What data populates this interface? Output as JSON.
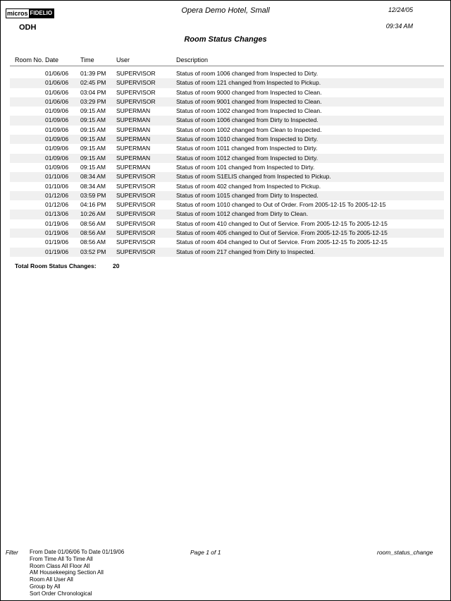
{
  "header": {
    "logo_text": "micros-FIDELIO",
    "logo_left": "micros",
    "logo_right": "FIDELIO",
    "hotel_name": "Opera Demo Hotel, Small",
    "print_date": "12/24/05",
    "print_time": "09:34 AM",
    "property_code": "ODH",
    "report_title": "Room Status Changes"
  },
  "columns": {
    "room_no": "Room No.",
    "date": "Date",
    "time": "Time",
    "user": "User",
    "description": "Description"
  },
  "rows": [
    {
      "room_no": "",
      "date": "01/06/06",
      "time": "01:39 PM",
      "user": "SUPERVISOR",
      "description": "Status of room 1006 changed from Inspected  to Dirty."
    },
    {
      "room_no": "",
      "date": "01/06/06",
      "time": "02:45 PM",
      "user": "SUPERVISOR",
      "description": "Status of room 121 changed from Inspected  to Pickup."
    },
    {
      "room_no": "",
      "date": "01/06/06",
      "time": "03:04 PM",
      "user": "SUPERVISOR",
      "description": "Status of room 9000 changed from Inspected  to Clean."
    },
    {
      "room_no": "",
      "date": "01/06/06",
      "time": "03:29 PM",
      "user": "SUPERVISOR",
      "description": "Status of room 9001 changed from Inspected  to Clean."
    },
    {
      "room_no": "",
      "date": "01/09/06",
      "time": "09:15 AM",
      "user": "SUPERMAN",
      "description": "Status of room 1002 changed from Inspected  to Clean."
    },
    {
      "room_no": "",
      "date": "01/09/06",
      "time": "09:15 AM",
      "user": "SUPERMAN",
      "description": "Status of room 1006 changed from Dirty  to Inspected."
    },
    {
      "room_no": "",
      "date": "01/09/06",
      "time": "09:15 AM",
      "user": "SUPERMAN",
      "description": "Status of room 1002 changed from Clean  to Inspected."
    },
    {
      "room_no": "",
      "date": "01/09/06",
      "time": "09:15 AM",
      "user": "SUPERMAN",
      "description": "Status of room 1010 changed from Inspected  to Dirty."
    },
    {
      "room_no": "",
      "date": "01/09/06",
      "time": "09:15 AM",
      "user": "SUPERMAN",
      "description": "Status of room 1011 changed from Inspected  to Dirty."
    },
    {
      "room_no": "",
      "date": "01/09/06",
      "time": "09:15 AM",
      "user": "SUPERMAN",
      "description": "Status of room 1012 changed from Inspected  to Dirty."
    },
    {
      "room_no": "",
      "date": "01/09/06",
      "time": "09:15 AM",
      "user": "SUPERMAN",
      "description": "Status of room 101 changed from Inspected  to Dirty."
    },
    {
      "room_no": "",
      "date": "01/10/06",
      "time": "08:34 AM",
      "user": "SUPERVISOR",
      "description": "Status of room S1ELIS changed from Inspected  to Pickup."
    },
    {
      "room_no": "",
      "date": "01/10/06",
      "time": "08:34 AM",
      "user": "SUPERVISOR",
      "description": "Status of room 402 changed from Inspected  to Pickup."
    },
    {
      "room_no": "",
      "date": "01/12/06",
      "time": "03:59 PM",
      "user": "SUPERVISOR",
      "description": "Status of room 1015 changed from Dirty  to Inspected."
    },
    {
      "room_no": "",
      "date": "01/12/06",
      "time": "04:16 PM",
      "user": "SUPERVISOR",
      "description": "Status of room  1010 changed to Out of Order. From 2005-12-15 To 2005-12-15"
    },
    {
      "room_no": "",
      "date": "01/13/06",
      "time": "10:26 AM",
      "user": "SUPERVISOR",
      "description": "Status of room 1012 changed from Dirty  to Clean."
    },
    {
      "room_no": "",
      "date": "01/19/06",
      "time": "08:56 AM",
      "user": "SUPERVISOR",
      "description": "Status of room  410 changed to Out of Service. From 2005-12-15 To 2005-12-15"
    },
    {
      "room_no": "",
      "date": "01/19/06",
      "time": "08:56 AM",
      "user": "SUPERVISOR",
      "description": "Status of room  405 changed to Out of Service. From 2005-12-15 To 2005-12-15"
    },
    {
      "room_no": "",
      "date": "01/19/06",
      "time": "08:56 AM",
      "user": "SUPERVISOR",
      "description": "Status of room  404 changed to Out of Service. From 2005-12-15 To 2005-12-15"
    },
    {
      "room_no": "",
      "date": "01/19/06",
      "time": "03:52 PM",
      "user": "SUPERVISOR",
      "description": "Status of room 217 changed from Dirty  to Inspected."
    }
  ],
  "total": {
    "label": "Total Room Status Changes:",
    "value": "20"
  },
  "footer": {
    "filter_label": "Filter",
    "filters": [
      "From Date 01/06/06   To Date 01/19/06",
      "From Time All   To Time All",
      "Room Class All   Floor All",
      "AM Housekeeping Section All",
      "Room All   User All",
      "Group by All",
      "Sort Order Chronological"
    ],
    "page": "Page 1 of 1",
    "report_name": "room_status_change"
  }
}
